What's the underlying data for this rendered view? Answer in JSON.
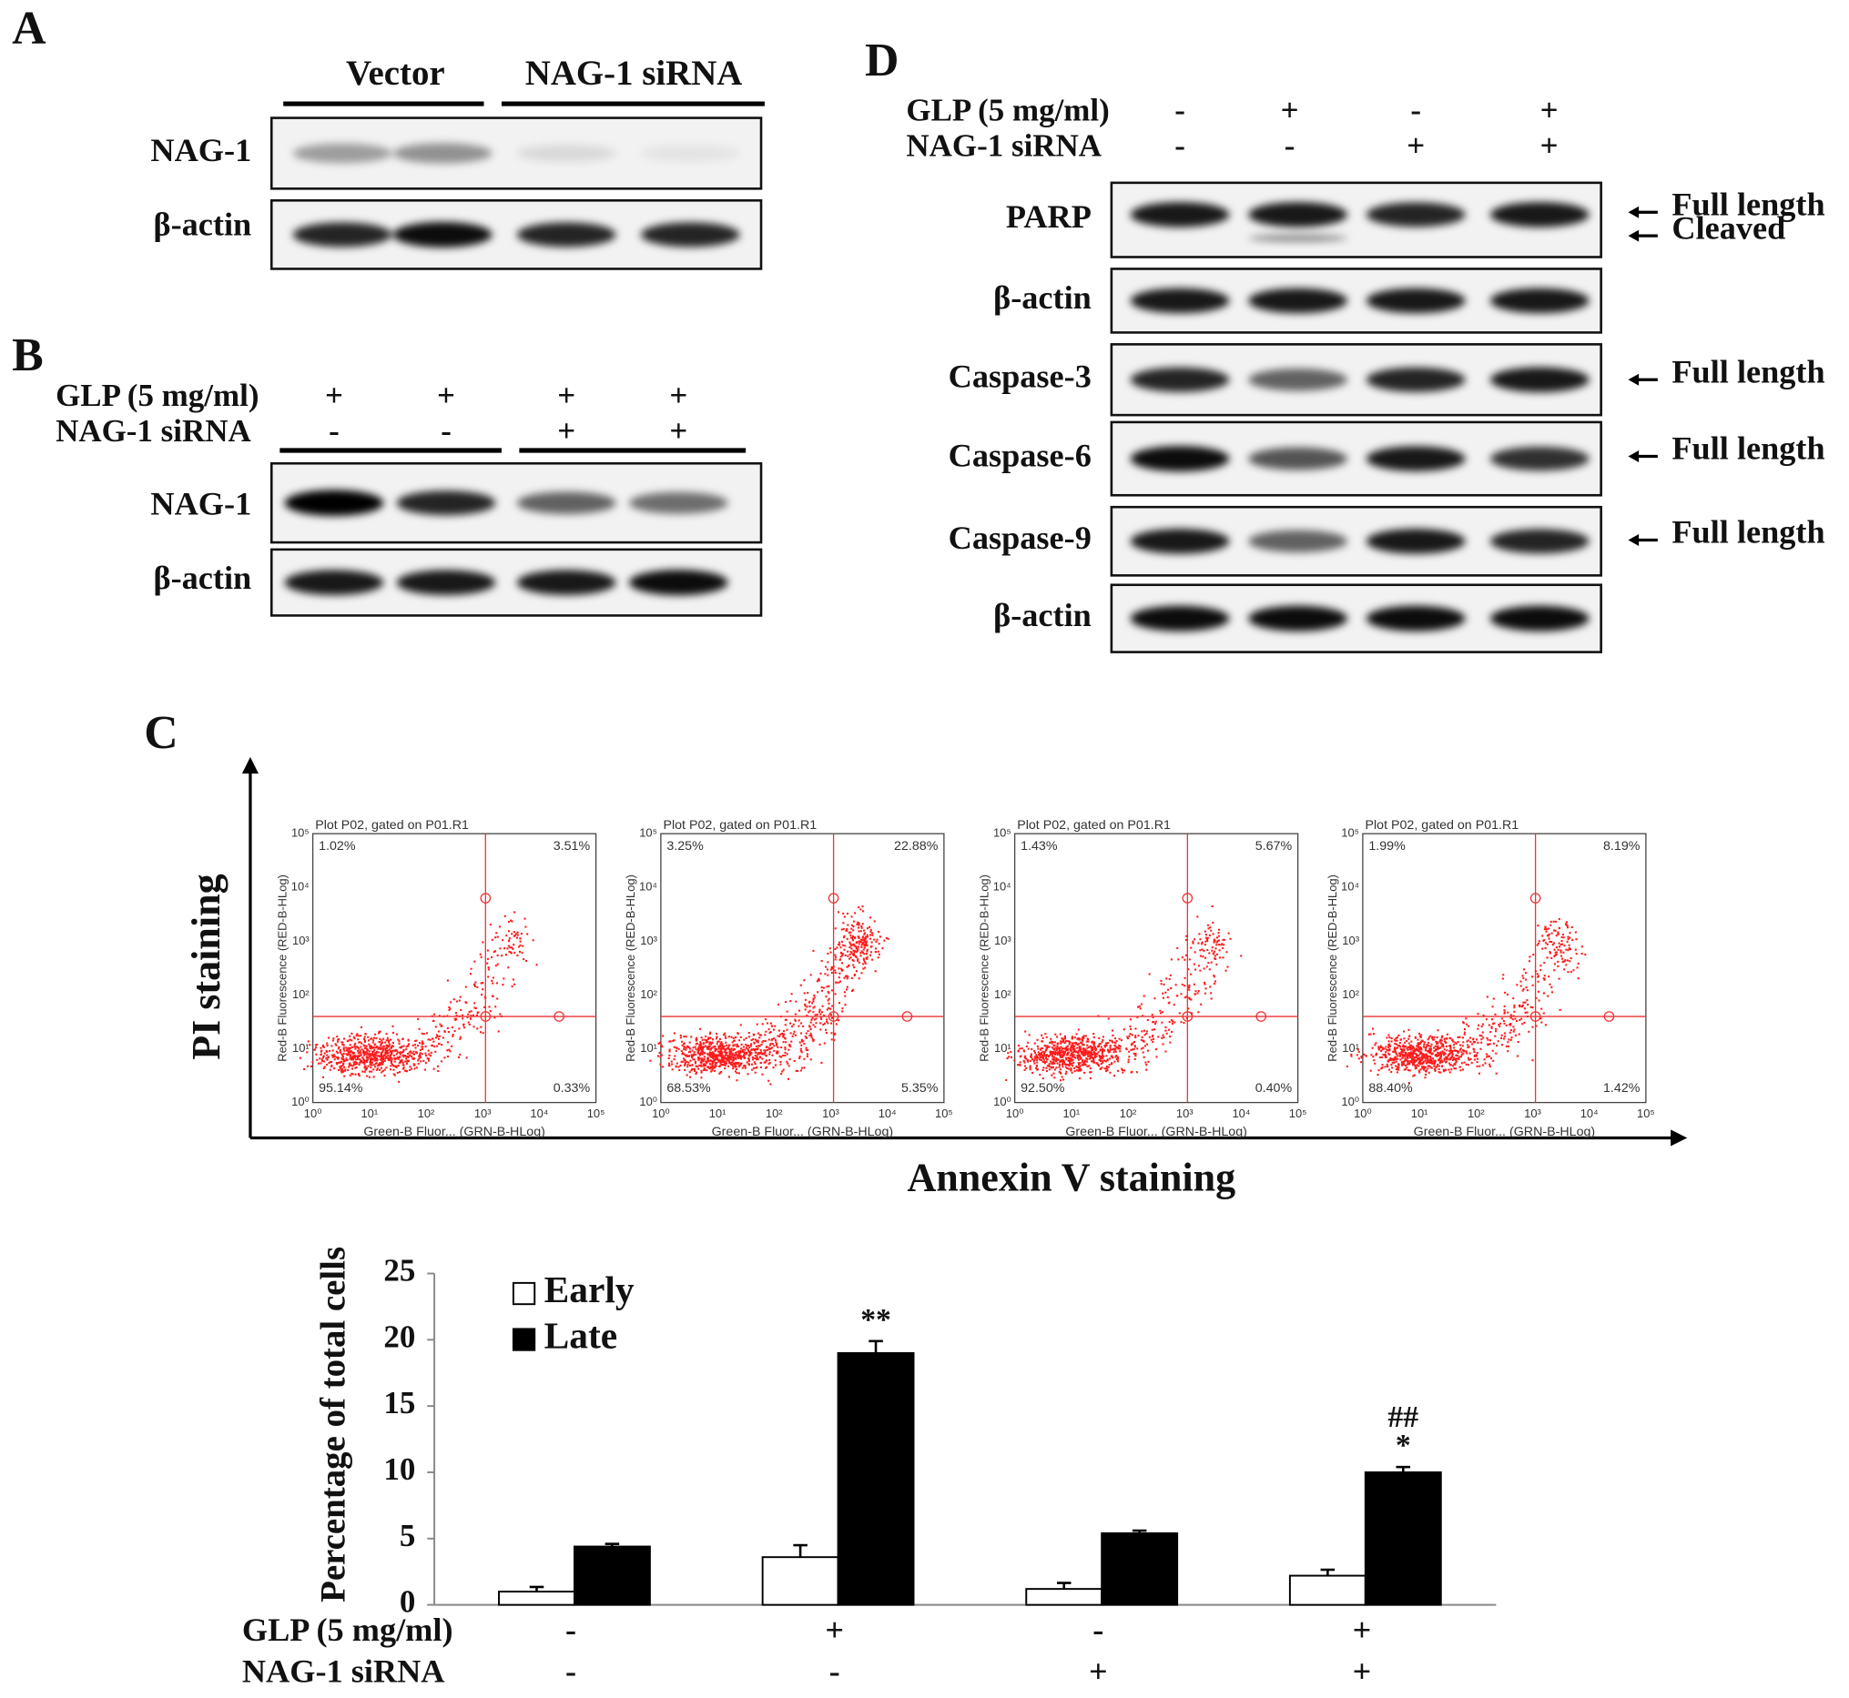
{
  "panel_a": {
    "label": "A",
    "groups": [
      "Vector",
      "NAG-1 siRNA"
    ],
    "rows": [
      "NAG-1",
      "β-actin"
    ]
  },
  "panel_b": {
    "label": "B",
    "conditions": [
      {
        "name": "GLP (5 mg/ml)",
        "signs": [
          "+",
          "+",
          "+",
          "+"
        ]
      },
      {
        "name": "NAG-1 siRNA",
        "signs": [
          "-",
          "-",
          "+",
          "+"
        ]
      }
    ],
    "rows": [
      "NAG-1",
      "β-actin"
    ]
  },
  "panel_d": {
    "label": "D",
    "conditions": [
      {
        "name": "GLP (5 mg/ml)",
        "signs": [
          "-",
          "+",
          "-",
          "+"
        ]
      },
      {
        "name": "NAG-1 siRNA",
        "signs": [
          "-",
          "-",
          "+",
          "+"
        ]
      }
    ],
    "rows": [
      "PARP",
      "β-actin",
      "Caspase-3",
      "Caspase-6",
      "Caspase-9",
      "β-actin"
    ],
    "arrow_labels": [
      "Full length",
      "Cleaved",
      "Full length",
      "Full length",
      "Full length"
    ]
  },
  "panel_c": {
    "label": "C",
    "y_label": "PI staining",
    "x_label": "Annexin V staining",
    "plot_title": "Plot P02, gated on P01.R1",
    "plot_y_label": "Red-B Fluorescence (RED-B-HLog)",
    "plot_x_label": "Green-B Fluor... (GRN-B-HLog)",
    "plot_ticks": [
      "10⁰",
      "10¹",
      "10²",
      "10³",
      "10⁴",
      "10⁵"
    ],
    "plots": [
      {
        "quadrants": [
          "1.02%",
          "3.51%",
          "95.14%",
          "0.33%"
        ]
      },
      {
        "quadrants": [
          "3.25%",
          "22.88%",
          "68.53%",
          "5.35%"
        ]
      },
      {
        "quadrants": [
          "1.43%",
          "5.67%",
          "92.50%",
          "0.40%"
        ]
      },
      {
        "quadrants": [
          "1.99%",
          "8.19%",
          "88.40%",
          "1.42%"
        ]
      }
    ]
  },
  "chart_data": {
    "type": "bar",
    "y_label": "Percentage of total cells",
    "conditions": [
      {
        "name": "GLP (5 mg/ml)",
        "signs": [
          "-",
          "+",
          "-",
          "+"
        ]
      },
      {
        "name": "NAG-1 siRNA",
        "signs": [
          "-",
          "-",
          "+",
          "+"
        ]
      }
    ],
    "series": [
      {
        "name": "Early",
        "color": "#ffffff",
        "values": [
          1.0,
          3.6,
          1.2,
          2.2
        ],
        "errors": [
          0.35,
          0.9,
          0.45,
          0.45
        ]
      },
      {
        "name": "Late",
        "color": "#000000",
        "values": [
          4.4,
          19.0,
          5.4,
          10.0
        ],
        "errors": [
          0.2,
          0.9,
          0.2,
          0.4
        ]
      }
    ],
    "annotations": [
      {
        "series": 1,
        "index": 1,
        "text": "**"
      },
      {
        "series": 1,
        "index": 3,
        "text": "*"
      },
      {
        "series": 1,
        "index": 3,
        "text": "##"
      }
    ],
    "ylim": [
      0,
      25
    ],
    "yticks": [
      0,
      5,
      10,
      15,
      20,
      25
    ]
  }
}
